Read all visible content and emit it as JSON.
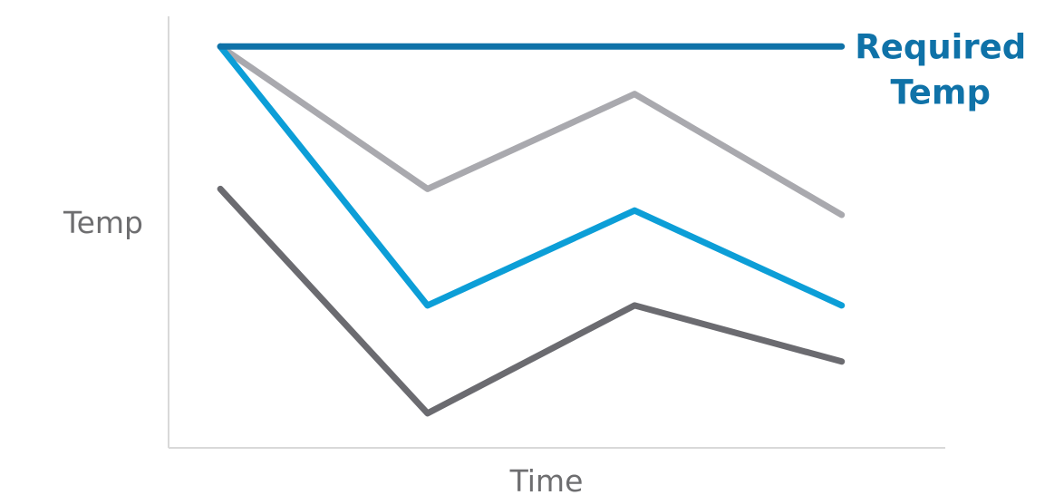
{
  "chart_data": {
    "type": "line",
    "xlabel": "Time",
    "ylabel": "Temp",
    "x": [
      1,
      2,
      3,
      4
    ],
    "xlim": [
      0.75,
      4.5
    ],
    "ylim": [
      0,
      10
    ],
    "grid": false,
    "legend": "none",
    "series": [
      {
        "name": "Required Temp",
        "values": [
          9.3,
          9.3,
          9.3,
          9.3
        ],
        "color": "#0f72a8"
      },
      {
        "name": "",
        "values": [
          9.3,
          6.0,
          8.2,
          5.4
        ],
        "color": "#a9a9ae"
      },
      {
        "name": "",
        "values": [
          9.3,
          3.3,
          5.5,
          3.3
        ],
        "color": "#0c9ed7"
      },
      {
        "name": "",
        "values": [
          6.0,
          0.8,
          3.3,
          2.0
        ],
        "color": "#6b6b70"
      }
    ]
  }
}
